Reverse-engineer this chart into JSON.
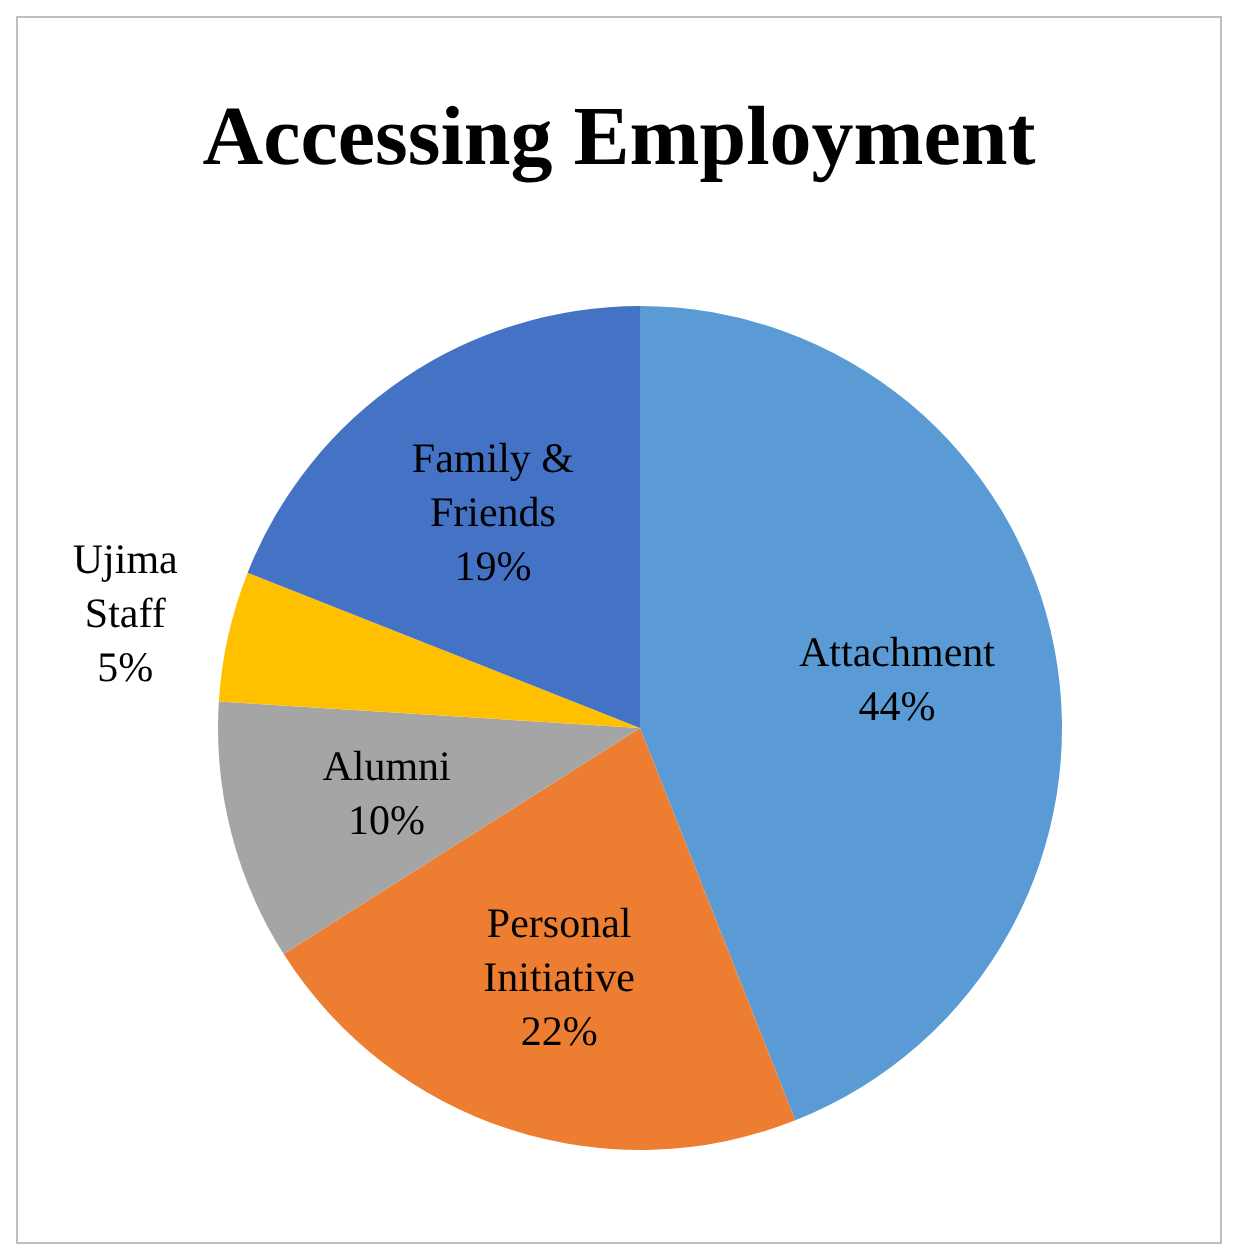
{
  "chart_data": {
    "type": "pie",
    "title": "Accessing Employment",
    "categories": [
      "Attachment",
      "Personal Initiative",
      "Alumni",
      "Ujima Staff",
      "Family & Friends"
    ],
    "values": [
      44,
      22,
      10,
      5,
      19
    ],
    "colors": [
      "#5b9bd5",
      "#ed7d31",
      "#a5a5a5",
      "#ffc000",
      "#4472c4"
    ],
    "value_labels": [
      "44%",
      "22%",
      "10%",
      "5%",
      "19%"
    ]
  }
}
